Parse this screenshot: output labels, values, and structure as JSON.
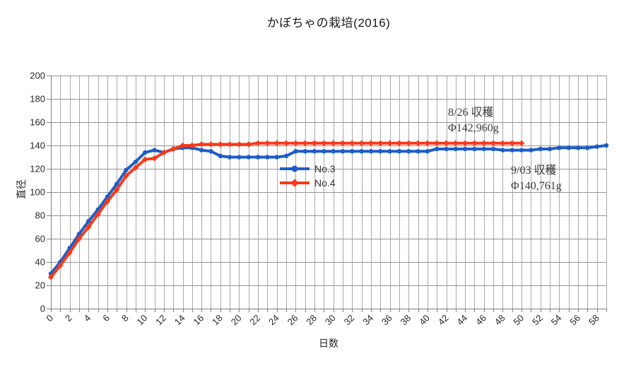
{
  "page": {
    "background": "#ffffff"
  },
  "chart_data": {
    "type": "line",
    "title": "かぼちゃの栽培(2016)",
    "xlabel": "日数",
    "ylabel": "直径",
    "xlim": [
      0,
      59
    ],
    "ylim": [
      0,
      200
    ],
    "y_tick_step": 20,
    "x_label_step": 2,
    "x_grid_step": 1,
    "grid": true,
    "legend_position": "center",
    "colors": {
      "axis": "#808080",
      "grid_vertical": "#a9a9a9",
      "grid_horizontal": "#949494",
      "tick_text": "#262626"
    },
    "series": [
      {
        "name": "No.3",
        "color": "#1c5dc8",
        "marker": "circle",
        "x_start": 0,
        "values": [
          30,
          40,
          52,
          64,
          75,
          85,
          96,
          107,
          119,
          126,
          134,
          136,
          134,
          137,
          138,
          138,
          136,
          135,
          131,
          130,
          130,
          130,
          130,
          130,
          130,
          131,
          135,
          135,
          135,
          135,
          135,
          135,
          135,
          135,
          135,
          135,
          135,
          135,
          135,
          135,
          135,
          137,
          137,
          137,
          137,
          137,
          137,
          137,
          136,
          136,
          136,
          136,
          137,
          137,
          138,
          138,
          138,
          138,
          139,
          140
        ]
      },
      {
        "name": "No.4",
        "color": "#f8391b",
        "marker": "diamond",
        "x_start": 0,
        "values": [
          27,
          37,
          48,
          60,
          70,
          81,
          92,
          102,
          114,
          121,
          128,
          129,
          134,
          137,
          140,
          140,
          141,
          141,
          141,
          141,
          141,
          141,
          142,
          142,
          142,
          142,
          142,
          142,
          142,
          142,
          142,
          142,
          142,
          142,
          142,
          142,
          142,
          142,
          142,
          142,
          142,
          142,
          142,
          142,
          142,
          142,
          142,
          142,
          142,
          142,
          142
        ]
      }
    ],
    "annotations": [
      {
        "line1": "8/26 収穫",
        "line2": "Φ142,960g"
      },
      {
        "line1": "9/03 収穫",
        "line2": "Φ140,761g"
      }
    ]
  }
}
